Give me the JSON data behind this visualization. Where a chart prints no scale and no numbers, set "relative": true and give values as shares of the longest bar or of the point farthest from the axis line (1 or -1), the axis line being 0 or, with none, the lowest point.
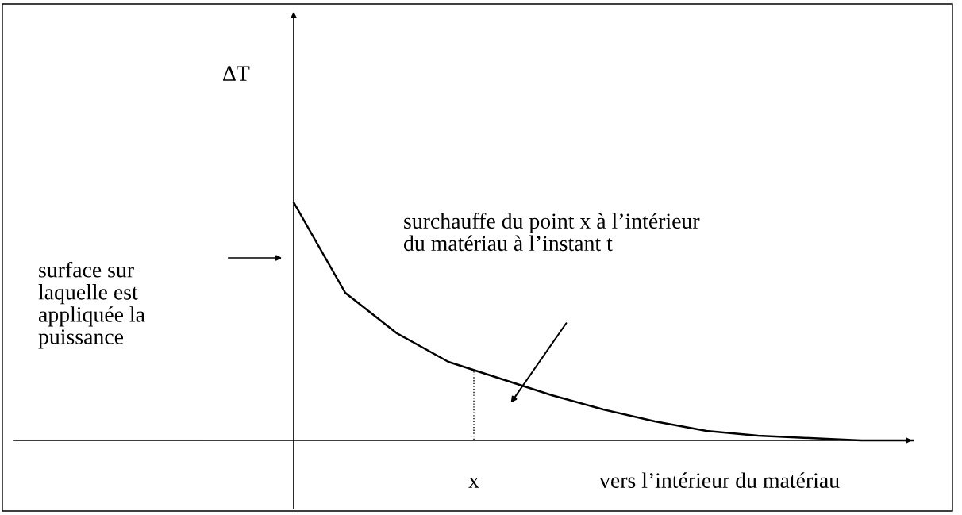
{
  "chart_data": {
    "type": "line",
    "relative": true,
    "xlabel": "vers l’intérieur du matériau",
    "categories": [
      null,
      null,
      null,
      null,
      null,
      null,
      null,
      null,
      null,
      null,
      null,
      null,
      null
    ],
    "series": [
      {
        "color": "#000000",
        "values": [
          1.0,
          0.62,
          0.45,
          0.33,
          0.26,
          0.19,
          0.13,
          0.08,
          0.04,
          0.02,
          0.01,
          0.0,
          0.0
        ]
      }
    ],
    "annotations": [
      "surface sur\nlaquelle est\nappliquée la\npuissance",
      "surchauffe du point x à l’intérieur\ndu matériau à l’instant t",
      "ΔT",
      "x"
    ],
    "marker": "none",
    "line_style": "solid"
  }
}
